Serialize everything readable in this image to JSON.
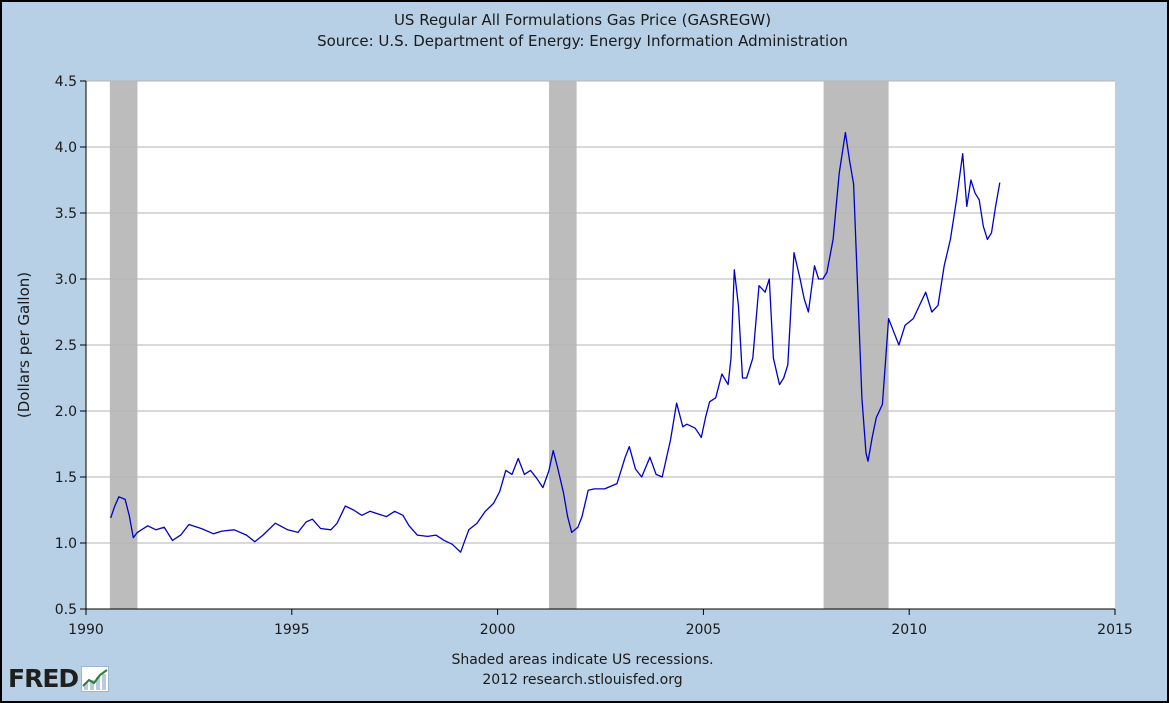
{
  "chart_data": {
    "type": "line",
    "title": "US Regular All Formulations Gas Price (GASREGW)",
    "subtitle": "Source: U.S. Department of Energy: Energy Information Administration",
    "ylabel": "(Dollars per Gallon)",
    "xlabel": "",
    "xlim": [
      1990,
      2015
    ],
    "ylim": [
      0.5,
      4.5
    ],
    "x_ticks": [
      "1990",
      "1995",
      "2000",
      "2005",
      "2010",
      "2015"
    ],
    "y_ticks": [
      "0.5",
      "1.0",
      "1.5",
      "2.0",
      "2.5",
      "3.0",
      "3.5",
      "4.0",
      "4.5"
    ],
    "grid": true,
    "recessions": [
      [
        1990.58,
        1991.25
      ],
      [
        2001.25,
        2001.92
      ],
      [
        2007.92,
        2009.5
      ]
    ],
    "series": [
      {
        "color": "#0000cc",
        "x": [
          1990.6,
          1990.7,
          1990.8,
          1990.95,
          1991.05,
          1991.15,
          1991.25,
          1991.5,
          1991.7,
          1991.9,
          1992.1,
          1992.3,
          1992.5,
          1992.8,
          1993.1,
          1993.3,
          1993.6,
          1993.9,
          1994.1,
          1994.3,
          1994.6,
          1994.9,
          1995.15,
          1995.35,
          1995.5,
          1995.7,
          1995.95,
          1996.1,
          1996.3,
          1996.5,
          1996.7,
          1996.9,
          1997.1,
          1997.3,
          1997.5,
          1997.7,
          1997.85,
          1998.05,
          1998.3,
          1998.5,
          1998.7,
          1998.9,
          1999.1,
          1999.3,
          1999.5,
          1999.7,
          1999.9,
          2000.05,
          2000.2,
          2000.35,
          2000.5,
          2000.65,
          2000.8,
          2000.95,
          2001.1,
          2001.25,
          2001.35,
          2001.45,
          2001.6,
          2001.7,
          2001.8,
          2001.95,
          2002.05,
          2002.2,
          2002.35,
          2002.6,
          2002.9,
          2003.1,
          2003.2,
          2003.35,
          2003.5,
          2003.7,
          2003.85,
          2004.0,
          2004.2,
          2004.35,
          2004.5,
          2004.6,
          2004.8,
          2004.95,
          2005.05,
          2005.15,
          2005.3,
          2005.45,
          2005.6,
          2005.67,
          2005.75,
          2005.85,
          2005.95,
          2006.05,
          2006.2,
          2006.35,
          2006.5,
          2006.6,
          2006.7,
          2006.85,
          2006.95,
          2007.05,
          2007.2,
          2007.35,
          2007.45,
          2007.55,
          2007.7,
          2007.8,
          2007.9,
          2008.0,
          2008.15,
          2008.3,
          2008.45,
          2008.55,
          2008.65,
          2008.75,
          2008.85,
          2008.95,
          2009.0,
          2009.1,
          2009.2,
          2009.35,
          2009.5,
          2009.6,
          2009.75,
          2009.9,
          2010.1,
          2010.25,
          2010.4,
          2010.55,
          2010.7,
          2010.85,
          2011.0,
          2011.15,
          2011.3,
          2011.4,
          2011.5,
          2011.6,
          2011.7,
          2011.8,
          2011.9,
          2012.0,
          2012.1,
          2012.2
        ],
        "values": [
          1.19,
          1.28,
          1.35,
          1.33,
          1.21,
          1.04,
          1.08,
          1.13,
          1.1,
          1.12,
          1.02,
          1.06,
          1.14,
          1.11,
          1.07,
          1.09,
          1.1,
          1.06,
          1.01,
          1.06,
          1.15,
          1.1,
          1.08,
          1.16,
          1.18,
          1.11,
          1.1,
          1.15,
          1.28,
          1.25,
          1.21,
          1.24,
          1.22,
          1.2,
          1.24,
          1.21,
          1.13,
          1.06,
          1.05,
          1.06,
          1.02,
          0.99,
          0.93,
          1.1,
          1.15,
          1.24,
          1.3,
          1.39,
          1.55,
          1.52,
          1.64,
          1.52,
          1.55,
          1.49,
          1.42,
          1.55,
          1.7,
          1.58,
          1.38,
          1.2,
          1.08,
          1.12,
          1.2,
          1.4,
          1.41,
          1.41,
          1.45,
          1.65,
          1.73,
          1.56,
          1.5,
          1.65,
          1.52,
          1.5,
          1.78,
          2.06,
          1.88,
          1.9,
          1.87,
          1.8,
          1.95,
          2.07,
          2.1,
          2.28,
          2.2,
          2.4,
          3.07,
          2.8,
          2.25,
          2.25,
          2.4,
          2.95,
          2.9,
          3.0,
          2.4,
          2.2,
          2.25,
          2.35,
          3.2,
          3.0,
          2.85,
          2.75,
          3.1,
          3.0,
          3.0,
          3.05,
          3.3,
          3.8,
          4.11,
          3.9,
          3.72,
          2.9,
          2.1,
          1.68,
          1.62,
          1.8,
          1.95,
          2.05,
          2.7,
          2.62,
          2.5,
          2.65,
          2.7,
          2.8,
          2.9,
          2.75,
          2.8,
          3.1,
          3.3,
          3.6,
          3.95,
          3.55,
          3.75,
          3.65,
          3.6,
          3.4,
          3.3,
          3.35,
          3.55,
          3.73
        ]
      }
    ]
  },
  "footer": {
    "line1": "Shaded areas indicate US recessions.",
    "line2": "2012 research.stlouisfed.org"
  },
  "logo": {
    "text": "FRED",
    "icon": "trend-chart-icon"
  }
}
